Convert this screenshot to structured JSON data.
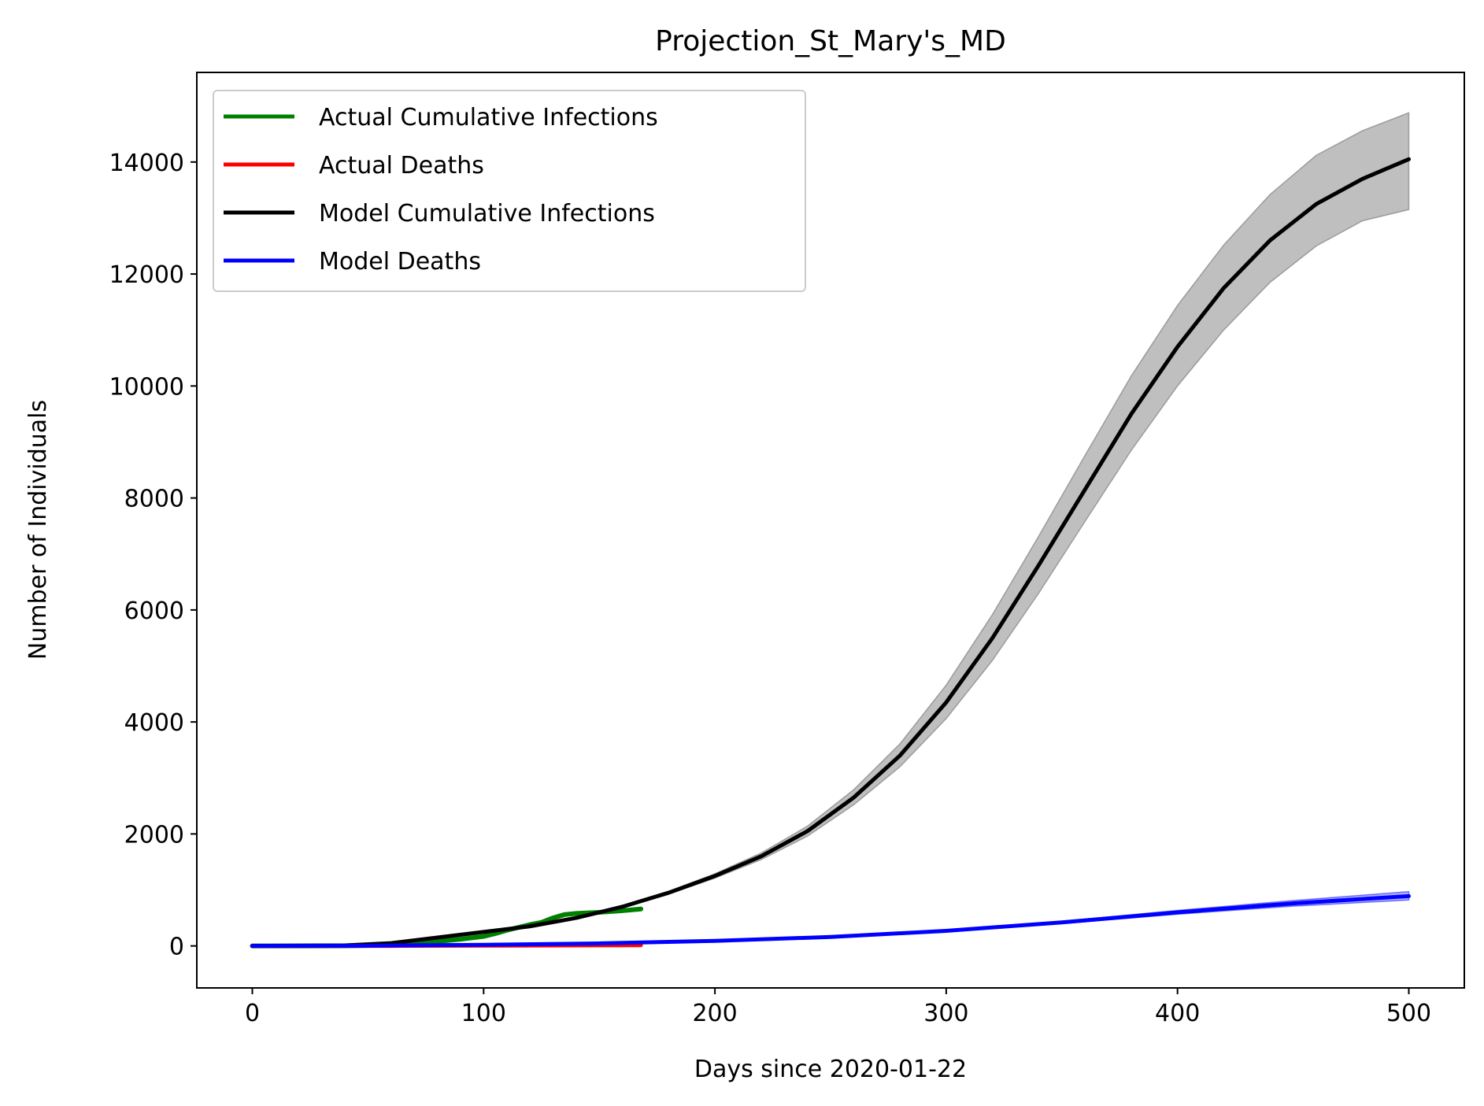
{
  "chart_data": {
    "type": "line",
    "title": "Projection_St_Mary's_MD",
    "xlabel": "Days since 2020-01-22",
    "ylabel": "Number of Individuals",
    "xlim": [
      -24,
      524
    ],
    "ylim": [
      -750,
      15600
    ],
    "xticks": [
      0,
      100,
      200,
      300,
      400,
      500
    ],
    "yticks": [
      0,
      2000,
      4000,
      6000,
      8000,
      10000,
      12000,
      14000
    ],
    "grid": false,
    "legend_position": "top-left",
    "series": [
      {
        "name": "Actual Cumulative Infections",
        "color": "#008000",
        "x": [
          0,
          40,
          60,
          70,
          80,
          90,
          100,
          105,
          110,
          115,
          120,
          125,
          130,
          135,
          140,
          150,
          160,
          168
        ],
        "y": [
          0,
          2,
          15,
          40,
          80,
          120,
          170,
          220,
          280,
          330,
          380,
          420,
          500,
          560,
          580,
          600,
          630,
          660
        ]
      },
      {
        "name": "Actual Deaths",
        "color": "#ff0000",
        "x": [
          0,
          60,
          100,
          168
        ],
        "y": [
          0,
          1,
          5,
          12
        ]
      },
      {
        "name": "Model Cumulative Infections",
        "color": "#000000",
        "x": [
          0,
          40,
          60,
          80,
          100,
          120,
          140,
          160,
          180,
          200,
          220,
          240,
          260,
          280,
          300,
          320,
          340,
          360,
          380,
          400,
          420,
          440,
          460,
          480,
          500
        ],
        "y": [
          0,
          10,
          50,
          150,
          250,
          350,
          500,
          700,
          950,
          1250,
          1600,
          2050,
          2650,
          3400,
          4350,
          5500,
          6800,
          8150,
          9500,
          10700,
          11750,
          12600,
          13250,
          13700,
          14050
        ],
        "band_low": [
          0,
          10,
          50,
          150,
          250,
          345,
          490,
          685,
          925,
          1210,
          1540,
          1960,
          2520,
          3200,
          4060,
          5100,
          6300,
          7580,
          8850,
          10000,
          11000,
          11850,
          12500,
          12950,
          13150
        ],
        "band_high": [
          0,
          10,
          50,
          150,
          255,
          355,
          510,
          715,
          975,
          1290,
          1660,
          2140,
          2790,
          3610,
          4660,
          5920,
          7320,
          8760,
          10180,
          11440,
          12520,
          13420,
          14120,
          14560,
          14880
        ]
      },
      {
        "name": "Model Deaths",
        "color": "#0000ff",
        "x": [
          0,
          50,
          100,
          150,
          200,
          250,
          300,
          350,
          400,
          450,
          500
        ],
        "y": [
          0,
          4,
          20,
          45,
          90,
          160,
          270,
          420,
          600,
          760,
          890
        ],
        "band_low": [
          0,
          4,
          19,
          43,
          86,
          152,
          256,
          398,
          566,
          710,
          820
        ],
        "band_high": [
          0,
          4,
          21,
          47,
          94,
          168,
          284,
          442,
          634,
          810,
          970
        ]
      }
    ]
  }
}
